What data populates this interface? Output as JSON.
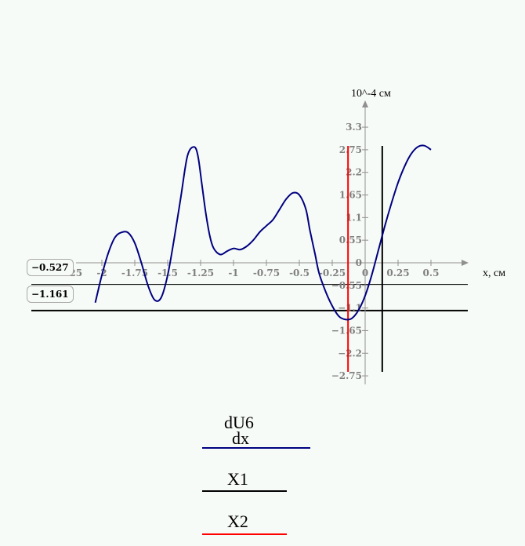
{
  "chart_data": {
    "type": "line",
    "x_unit_label": "x, см",
    "y_unit_label": "10^-4 см",
    "xlim": [
      -2.25,
      0.5
    ],
    "ylim": [
      -2.75,
      3.3
    ],
    "x_ticks": [
      -2.25,
      -2,
      -1.75,
      -1.5,
      -1.25,
      -1,
      -0.75,
      -0.5,
      -0.25,
      0,
      0.25,
      0.5
    ],
    "x_tick_labels": [
      "-2.25",
      "-2",
      "-1.75",
      "-1.5",
      "-1.25",
      "-1",
      "-0.75",
      "-0.5",
      "-0.25",
      "0",
      "0.25",
      "0.5"
    ],
    "y_ticks": [
      3.3,
      2.75,
      2.2,
      1.65,
      1.1,
      0.55,
      0,
      -0.55,
      -1.1,
      -1.65,
      -2.2,
      -2.75
    ],
    "y_tick_labels": [
      "3.3",
      "2.75",
      "2.2",
      "1.65",
      "1.1",
      "0.55",
      "0",
      "−0.55",
      "−1.1",
      "−1.65",
      "−2.2",
      "−2.75"
    ],
    "grid": false,
    "series": [
      {
        "name": "dU6/dx",
        "color": "#000080",
        "x": [
          -2.05,
          -2.0,
          -1.95,
          -1.9,
          -1.85,
          -1.8,
          -1.75,
          -1.7,
          -1.65,
          -1.6,
          -1.55,
          -1.5,
          -1.45,
          -1.4,
          -1.35,
          -1.3,
          -1.27,
          -1.24,
          -1.21,
          -1.18,
          -1.15,
          -1.1,
          -1.05,
          -1.0,
          -0.95,
          -0.9,
          -0.85,
          -0.8,
          -0.75,
          -0.7,
          -0.65,
          -0.6,
          -0.55,
          -0.5,
          -0.45,
          -0.42,
          -0.38,
          -0.35,
          -0.3,
          -0.25,
          -0.2,
          -0.15,
          -0.1,
          -0.05,
          0.0,
          0.05,
          0.1,
          0.15,
          0.2,
          0.25,
          0.3,
          0.35,
          0.4,
          0.45,
          0.5
        ],
        "y": [
          -0.97,
          -0.3,
          0.25,
          0.62,
          0.74,
          0.73,
          0.48,
          0.0,
          -0.55,
          -0.9,
          -0.85,
          -0.3,
          0.6,
          1.6,
          2.6,
          2.82,
          2.6,
          1.9,
          1.2,
          0.65,
          0.35,
          0.2,
          0.28,
          0.35,
          0.32,
          0.4,
          0.55,
          0.75,
          0.9,
          1.05,
          1.3,
          1.55,
          1.7,
          1.65,
          1.3,
          0.8,
          0.2,
          -0.25,
          -0.7,
          -1.05,
          -1.3,
          -1.38,
          -1.35,
          -1.15,
          -0.8,
          -0.3,
          0.3,
          0.9,
          1.45,
          1.95,
          2.35,
          2.65,
          2.82,
          2.85,
          2.75
        ]
      },
      {
        "name": "X1",
        "color": "#000000",
        "x": 0.13
      },
      {
        "name": "X2",
        "color": "#ff0000",
        "x": -0.13
      }
    ],
    "horizontal_markers": [
      {
        "label": "−0.527",
        "value": -0.527,
        "color": "#000000"
      },
      {
        "label": "−1.161",
        "value": -1.161,
        "color": "#000000"
      }
    ],
    "legend": [
      {
        "label_top": "dU6",
        "label_bottom": "dx",
        "color": "#000080"
      },
      {
        "label": "X1",
        "color": "#000000"
      },
      {
        "label": "X2",
        "color": "#ff0000"
      }
    ]
  }
}
